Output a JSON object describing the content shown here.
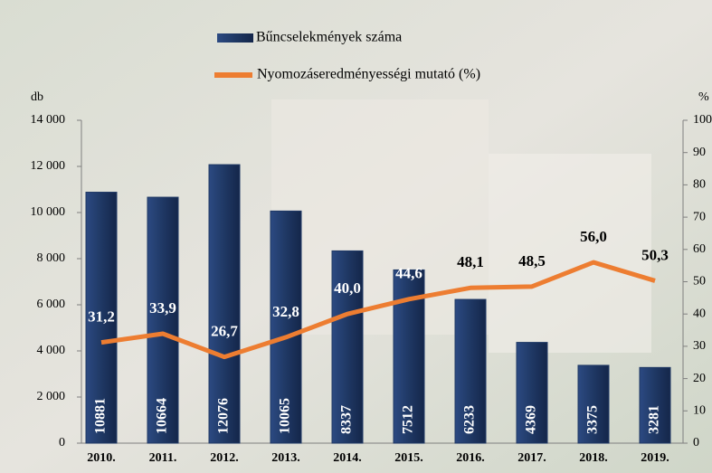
{
  "chart_data": {
    "type": "bar-line",
    "categories": [
      "2010.",
      "2011.",
      "2012.",
      "2013.",
      "2014.",
      "2015.",
      "2016.",
      "2017.",
      "2018.",
      "2019."
    ],
    "series": [
      {
        "name": "Bűncselekmények száma",
        "type": "bar",
        "color": "#1f3864",
        "values": [
          10881,
          10664,
          12076,
          10065,
          8337,
          7512,
          6233,
          4369,
          3375,
          3281
        ]
      },
      {
        "name": "Nyomozáseredményességi mutató (%)",
        "type": "line",
        "axis": "y2",
        "color": "#ed7d31",
        "values": [
          31.2,
          33.9,
          26.7,
          32.8,
          40.0,
          44.6,
          48.1,
          48.5,
          56.0,
          50.3
        ],
        "value_labels": [
          "31,2",
          "33,9",
          "26,7",
          "32,8",
          "40,0",
          "44,6",
          "48,1",
          "48,5",
          "56,0",
          "50,3"
        ]
      }
    ],
    "ylabel": "db",
    "y2label": "%",
    "ylim": [
      0,
      14000
    ],
    "yticks": [
      0,
      {
        "value": 2000,
        "label": "2 000"
      },
      {
        "value": 4000,
        "label": "4 000"
      },
      {
        "value": 6000,
        "label": "6 000"
      },
      {
        "value": 8000,
        "label": "8 000"
      },
      {
        "value": 10000,
        "label": "10 000"
      },
      {
        "value": 12000,
        "label": "12 000"
      },
      {
        "value": 14000,
        "label": "14 000"
      }
    ],
    "y2lim": [
      0,
      100
    ],
    "y2ticks": [
      0,
      10,
      20,
      30,
      40,
      50,
      60,
      70,
      80,
      90,
      100
    ]
  }
}
